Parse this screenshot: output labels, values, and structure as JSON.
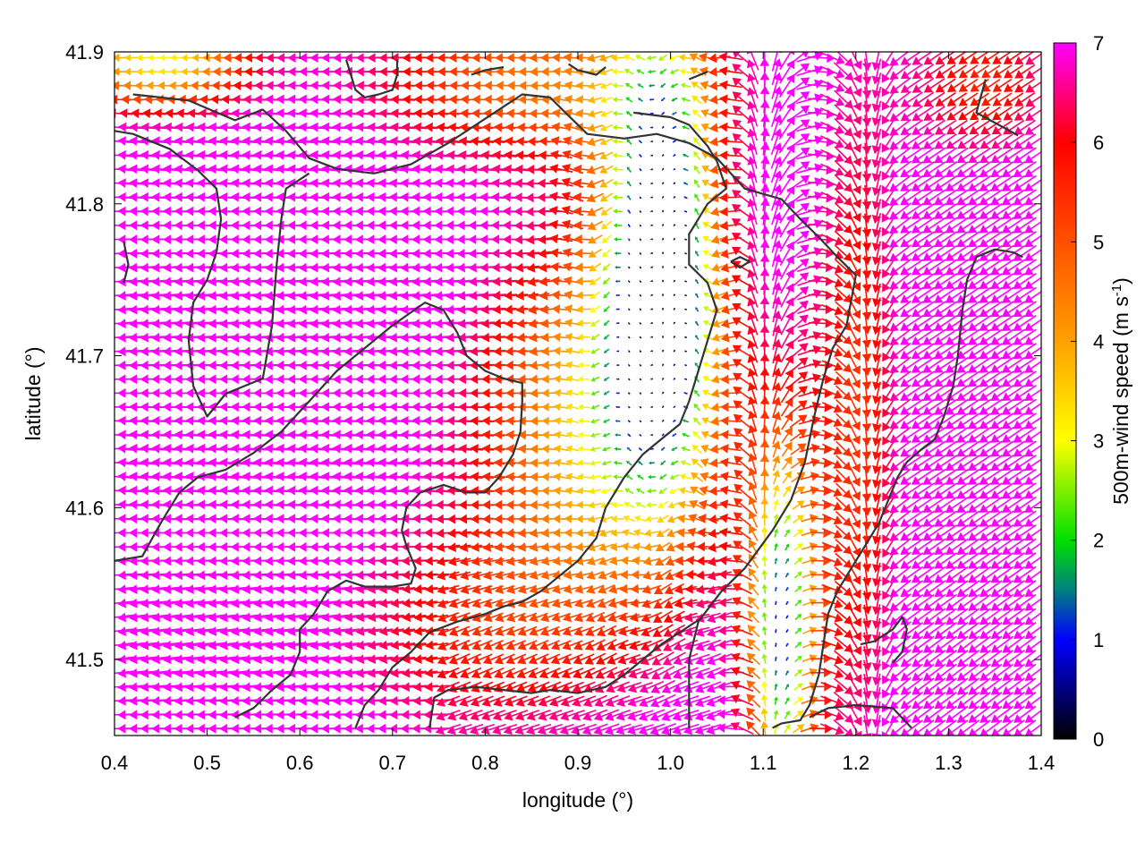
{
  "chart_data": {
    "type": "vector-field",
    "title": "",
    "xlabel": "longitude (°)",
    "ylabel": "latitude (°)",
    "xlim": [
      0.4,
      1.4
    ],
    "ylim": [
      41.45,
      41.9
    ],
    "xticks": [
      {
        "value": 0.4,
        "label": "0.4"
      },
      {
        "value": 0.5,
        "label": "0.5"
      },
      {
        "value": 0.6,
        "label": "0.6"
      },
      {
        "value": 0.7,
        "label": "0.7"
      },
      {
        "value": 0.8,
        "label": "0.8"
      },
      {
        "value": 0.9,
        "label": "0.9"
      },
      {
        "value": 1.0,
        "label": "1.0"
      },
      {
        "value": 1.1,
        "label": "1.1"
      },
      {
        "value": 1.2,
        "label": "1.2"
      },
      {
        "value": 1.3,
        "label": "1.3"
      },
      {
        "value": 1.4,
        "label": "1.4"
      }
    ],
    "yticks": [
      {
        "value": 41.5,
        "label": "41.5"
      },
      {
        "value": 41.6,
        "label": "41.6"
      },
      {
        "value": 41.7,
        "label": "41.7"
      },
      {
        "value": 41.8,
        "label": "41.8"
      },
      {
        "value": 41.9,
        "label": "41.9"
      }
    ],
    "grid": false,
    "colorbar": {
      "label": "500m-wind speed (m s⁻¹)",
      "label_main": "500m-wind speed (m s",
      "label_sup": "-1",
      "label_end": ")",
      "range": [
        0,
        7
      ],
      "ticks": [
        {
          "value": 0,
          "label": "0"
        },
        {
          "value": 1,
          "label": "1"
        },
        {
          "value": 2,
          "label": "2"
        },
        {
          "value": 3,
          "label": "3"
        },
        {
          "value": 4,
          "label": "4"
        },
        {
          "value": 5,
          "label": "5"
        },
        {
          "value": 6,
          "label": "6"
        },
        {
          "value": 7,
          "label": "7"
        }
      ],
      "stops": [
        {
          "value": 0,
          "color": "#000000"
        },
        {
          "value": 1,
          "color": "#0000ff"
        },
        {
          "value": 1.5,
          "color": "#008080"
        },
        {
          "value": 2,
          "color": "#00e000"
        },
        {
          "value": 3,
          "color": "#ffff00"
        },
        {
          "value": 4,
          "color": "#ffa000"
        },
        {
          "value": 5,
          "color": "#ff5000"
        },
        {
          "value": 6,
          "color": "#ff0000"
        },
        {
          "value": 7,
          "color": "#ff00ff"
        }
      ]
    },
    "vector_field": {
      "description_regions": [
        {
          "region": "west (lon 0.4–0.75)",
          "speed": 7,
          "direction": "easterly, blowing west"
        },
        {
          "region": "central calm core (lon ~1.0, lat 41.65–41.88)",
          "speed": 0.5,
          "direction": "light, variable"
        },
        {
          "region": "south-central (lat 41.45–41.6)",
          "speed": 5.5,
          "direction": "from east/north-east"
        },
        {
          "region": "east (lon 1.25–1.4)",
          "speed": 7,
          "direction": "from north-east"
        }
      ],
      "lon_spacing": 0.0122,
      "lat_spacing": 0.0092,
      "arrow_length_at_max": 0.03
    },
    "coastline": [
      [
        [
          0.42,
          41.872
        ],
        [
          0.48,
          41.868
        ],
        [
          0.53,
          41.855
        ],
        [
          0.56,
          41.862
        ],
        [
          0.585,
          41.848
        ],
        [
          0.61,
          41.83
        ],
        [
          0.64,
          41.823
        ],
        [
          0.68,
          41.82
        ],
        [
          0.72,
          41.826
        ],
        [
          0.76,
          41.84
        ],
        [
          0.79,
          41.852
        ],
        [
          0.82,
          41.864
        ],
        [
          0.84,
          41.872
        ],
        [
          0.87,
          41.87
        ],
        [
          0.89,
          41.858
        ],
        [
          0.91,
          41.846
        ],
        [
          0.95,
          41.843
        ],
        [
          0.985,
          41.846
        ],
        [
          1.02,
          41.84
        ],
        [
          1.05,
          41.83
        ],
        [
          1.08,
          41.81
        ],
        [
          1.12,
          41.803
        ],
        [
          1.14,
          41.79
        ],
        [
          1.16,
          41.778
        ],
        [
          1.18,
          41.765
        ],
        [
          1.2,
          41.753
        ],
        [
          1.19,
          41.72
        ],
        [
          1.175,
          41.705
        ],
        [
          1.165,
          41.685
        ],
        [
          1.155,
          41.66
        ],
        [
          1.145,
          41.63
        ],
        [
          1.13,
          41.605
        ],
        [
          1.11,
          41.585
        ],
        [
          1.08,
          41.56
        ],
        [
          1.055,
          41.545
        ],
        [
          1.03,
          41.525
        ],
        [
          1.02,
          41.5
        ],
        [
          1.02,
          41.47
        ],
        [
          1.02,
          41.455
        ]
      ],
      [
        [
          0.4,
          41.848
        ],
        [
          0.42,
          41.846
        ],
        [
          0.46,
          41.836
        ],
        [
          0.49,
          41.822
        ],
        [
          0.51,
          41.81
        ],
        [
          0.515,
          41.79
        ],
        [
          0.51,
          41.768
        ],
        [
          0.5,
          41.75
        ],
        [
          0.485,
          41.735
        ],
        [
          0.48,
          41.71
        ],
        [
          0.485,
          41.68
        ],
        [
          0.5,
          41.66
        ],
        [
          0.52,
          41.675
        ],
        [
          0.54,
          41.68
        ],
        [
          0.56,
          41.685
        ],
        [
          0.57,
          41.72
        ],
        [
          0.575,
          41.76
        ],
        [
          0.58,
          41.79
        ],
        [
          0.585,
          41.81
        ],
        [
          0.61,
          41.82
        ]
      ],
      [
        [
          0.4,
          41.565
        ],
        [
          0.43,
          41.568
        ],
        [
          0.45,
          41.59
        ],
        [
          0.47,
          41.61
        ],
        [
          0.49,
          41.62
        ],
        [
          0.52,
          41.625
        ],
        [
          0.55,
          41.636
        ],
        [
          0.58,
          41.65
        ],
        [
          0.61,
          41.67
        ],
        [
          0.64,
          41.69
        ],
        [
          0.67,
          41.705
        ],
        [
          0.7,
          41.72
        ],
        [
          0.735,
          41.735
        ],
        [
          0.755,
          41.73
        ],
        [
          0.77,
          41.715
        ],
        [
          0.78,
          41.7
        ],
        [
          0.8,
          41.69
        ],
        [
          0.82,
          41.685
        ],
        [
          0.84,
          41.682
        ],
        [
          0.84,
          41.67
        ],
        [
          0.838,
          41.65
        ],
        [
          0.83,
          41.635
        ],
        [
          0.815,
          41.62
        ],
        [
          0.8,
          41.61
        ],
        [
          0.78,
          41.61
        ],
        [
          0.755,
          41.615
        ],
        [
          0.73,
          41.61
        ],
        [
          0.715,
          41.6
        ],
        [
          0.71,
          41.585
        ],
        [
          0.715,
          41.575
        ],
        [
          0.725,
          41.56
        ],
        [
          0.72,
          41.55
        ],
        [
          0.7,
          41.548
        ],
        [
          0.67,
          41.548
        ],
        [
          0.65,
          41.552
        ],
        [
          0.63,
          41.545
        ],
        [
          0.615,
          41.53
        ],
        [
          0.6,
          41.52
        ],
        [
          0.6,
          41.505
        ],
        [
          0.59,
          41.49
        ],
        [
          0.57,
          41.48
        ],
        [
          0.55,
          41.468
        ],
        [
          0.53,
          41.462
        ]
      ],
      [
        [
          0.96,
          41.86
        ],
        [
          1.0,
          41.857
        ],
        [
          1.02,
          41.852
        ],
        [
          1.04,
          41.838
        ],
        [
          1.05,
          41.828
        ],
        [
          1.06,
          41.81
        ],
        [
          1.04,
          41.8
        ],
        [
          1.02,
          41.78
        ],
        [
          1.02,
          41.76
        ],
        [
          1.04,
          41.748
        ],
        [
          1.05,
          41.73
        ],
        [
          1.04,
          41.71
        ],
        [
          1.03,
          41.69
        ],
        [
          1.02,
          41.67
        ],
        [
          1.01,
          41.655
        ],
        [
          0.99,
          41.645
        ],
        [
          0.97,
          41.635
        ],
        [
          0.95,
          41.62
        ],
        [
          0.93,
          41.6
        ],
        [
          0.92,
          41.58
        ],
        [
          0.9,
          41.565
        ],
        [
          0.88,
          41.555
        ],
        [
          0.86,
          41.545
        ],
        [
          0.84,
          41.538
        ],
        [
          0.82,
          41.535
        ],
        [
          0.8,
          41.53
        ],
        [
          0.77,
          41.525
        ],
        [
          0.74,
          41.518
        ],
        [
          0.72,
          41.505
        ],
        [
          0.7,
          41.495
        ],
        [
          0.685,
          41.48
        ],
        [
          0.67,
          41.47
        ],
        [
          0.66,
          41.455
        ]
      ],
      [
        [
          0.74,
          41.455
        ],
        [
          0.745,
          41.475
        ],
        [
          0.76,
          41.48
        ],
        [
          0.79,
          41.482
        ],
        [
          0.82,
          41.48
        ],
        [
          0.85,
          41.478
        ],
        [
          0.87,
          41.48
        ],
        [
          0.9,
          41.478
        ],
        [
          0.93,
          41.482
        ],
        [
          0.95,
          41.49
        ],
        [
          0.97,
          41.5
        ],
        [
          0.99,
          41.51
        ],
        [
          1.01,
          41.518
        ],
        [
          1.03,
          41.526
        ]
      ],
      [
        [
          1.38,
          41.765
        ],
        [
          1.37,
          41.768
        ],
        [
          1.35,
          41.77
        ],
        [
          1.33,
          41.765
        ],
        [
          1.32,
          41.75
        ],
        [
          1.315,
          41.73
        ],
        [
          1.31,
          41.7
        ],
        [
          1.305,
          41.68
        ],
        [
          1.295,
          41.66
        ],
        [
          1.285,
          41.645
        ],
        [
          1.27,
          41.638
        ],
        [
          1.255,
          41.63
        ],
        [
          1.245,
          41.62
        ],
        [
          1.235,
          41.605
        ],
        [
          1.225,
          41.59
        ],
        [
          1.21,
          41.575
        ],
        [
          1.195,
          41.56
        ],
        [
          1.18,
          41.545
        ],
        [
          1.17,
          41.53
        ],
        [
          1.165,
          41.51
        ],
        [
          1.16,
          41.49
        ],
        [
          1.15,
          41.47
        ],
        [
          1.14,
          41.46
        ],
        [
          1.12,
          41.458
        ],
        [
          1.11,
          41.455
        ]
      ],
      [
        [
          1.205,
          41.51
        ],
        [
          1.22,
          41.512
        ],
        [
          1.24,
          41.52
        ],
        [
          1.25,
          41.528
        ],
        [
          1.255,
          41.52
        ],
        [
          1.25,
          41.505
        ],
        [
          1.24,
          41.498
        ]
      ],
      [
        [
          1.15,
          41.462
        ],
        [
          1.17,
          41.468
        ],
        [
          1.2,
          41.47
        ],
        [
          1.24,
          41.468
        ],
        [
          1.26,
          41.455
        ]
      ],
      [
        [
          1.34,
          41.882
        ],
        [
          1.33,
          41.86
        ],
        [
          1.345,
          41.855
        ],
        [
          1.36,
          41.85
        ],
        [
          1.375,
          41.845
        ]
      ],
      [
        [
          0.705,
          41.895
        ],
        [
          0.705,
          41.885
        ],
        [
          0.7,
          41.875
        ],
        [
          0.685,
          41.872
        ],
        [
          0.67,
          41.87
        ],
        [
          0.66,
          41.875
        ],
        [
          0.655,
          41.885
        ],
        [
          0.65,
          41.895
        ]
      ],
      [
        [
          0.785,
          41.885
        ],
        [
          0.8,
          41.888
        ],
        [
          0.82,
          41.89
        ]
      ],
      [
        [
          0.89,
          41.892
        ],
        [
          0.9,
          41.888
        ],
        [
          0.92,
          41.885
        ],
        [
          0.93,
          41.89
        ]
      ],
      [
        [
          1.02,
          41.882
        ],
        [
          1.04,
          41.887
        ]
      ],
      [
        [
          1.065,
          41.762
        ],
        [
          1.075,
          41.765
        ],
        [
          1.085,
          41.762
        ],
        [
          1.075,
          41.758
        ],
        [
          1.065,
          41.762
        ]
      ],
      [
        [
          0.41,
          41.775
        ],
        [
          0.415,
          41.76
        ],
        [
          0.41,
          41.748
        ]
      ]
    ]
  }
}
